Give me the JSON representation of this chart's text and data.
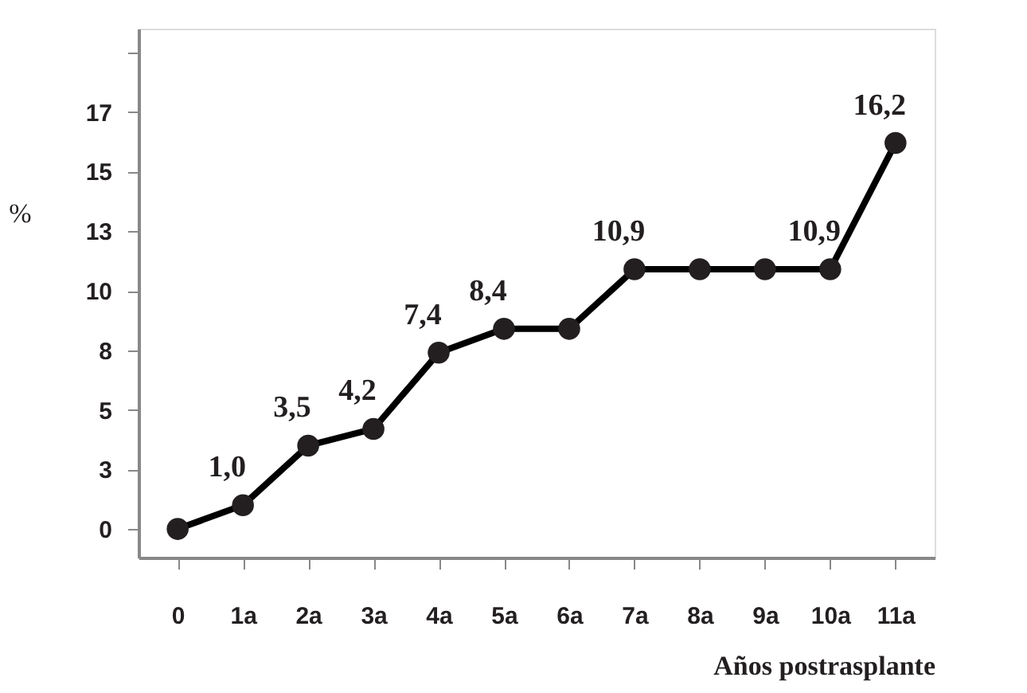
{
  "chart_data": {
    "type": "line",
    "xlabel": "Años postrasplante",
    "ylabel": "%",
    "categories": [
      "0",
      "1a",
      "2a",
      "3a",
      "4a",
      "5a",
      "6a",
      "7a",
      "8a",
      "9a",
      "10a",
      "11a"
    ],
    "series": [
      {
        "color": "#000000",
        "values": [
          0,
          1.0,
          3.5,
          4.2,
          7.4,
          8.4,
          8.4,
          10.9,
          10.9,
          10.9,
          10.9,
          16.2
        ],
        "value_labels": [
          null,
          "1,0",
          "3,5",
          "4,2",
          "7,4",
          "8,4",
          null,
          "10,9",
          null,
          null,
          "10,9",
          "16,2"
        ]
      }
    ],
    "ylim": [
      -1.2,
      21
    ],
    "yticks": [
      0,
      {
        "value": 2.5,
        "label": "3"
      },
      5,
      {
        "value": 7.5,
        "label": "8"
      },
      10,
      {
        "value": 12.5,
        "label": "13"
      },
      15,
      {
        "value": 17.5,
        "label": "17"
      },
      {
        "value": 20,
        "label": null
      }
    ],
    "marker": "circle",
    "line_style": "solid",
    "grid": false
  }
}
